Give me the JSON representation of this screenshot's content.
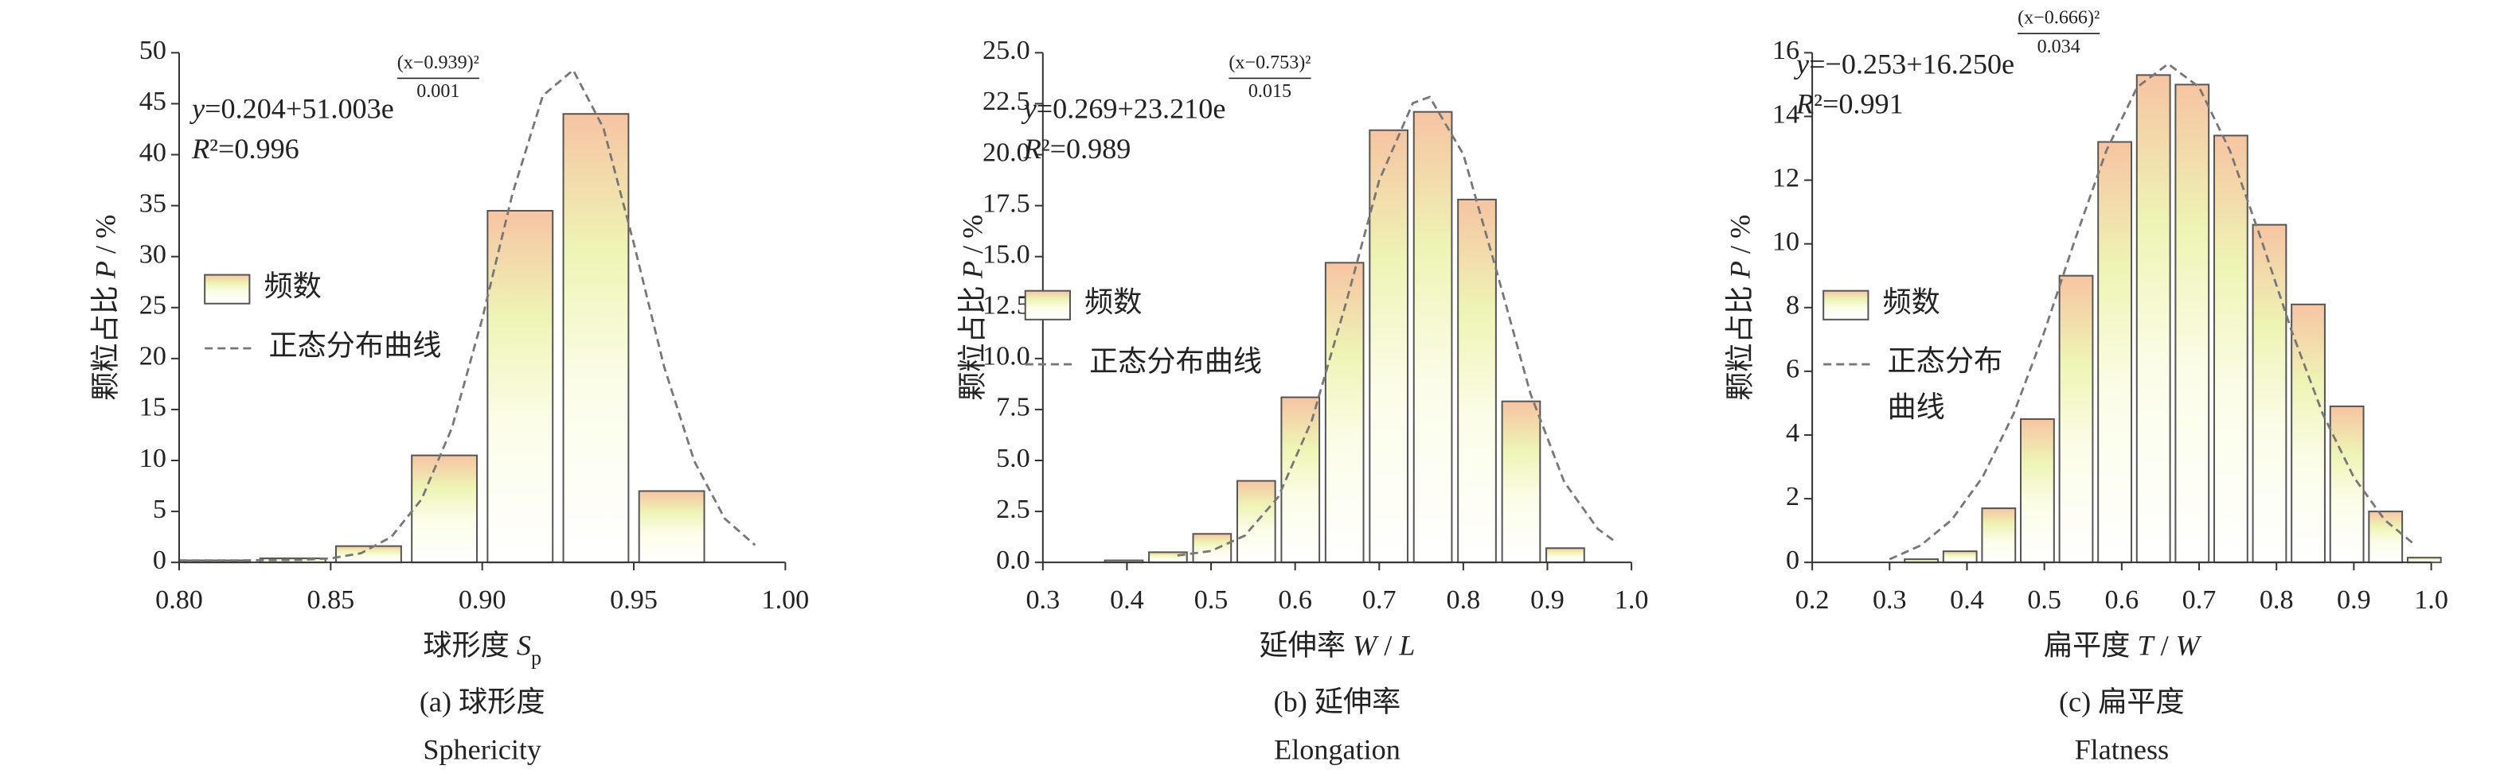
{
  "chart_data": [
    {
      "type": "histogram",
      "xlabel": [
        {
          "text": "球形度 "
        },
        {
          "text": "S",
          "style": "italic"
        },
        {
          "text": "p",
          "style": "sub"
        }
      ],
      "ylabel": [
        {
          "text": "颗粒占比 "
        },
        {
          "text": "P",
          "style": "italic"
        },
        {
          "text": " / %"
        }
      ],
      "caption": [
        "(a) 球形度",
        "Sphericity"
      ],
      "equation": [
        {
          "text": "y",
          "style": "italic"
        },
        {
          "text": "=0.204+51.003e"
        }
      ],
      "exponent": {
        "numerator": "(x−0.939)²",
        "denominator": "0.001"
      },
      "r2": [
        {
          "text": "R",
          "style": "italic"
        },
        {
          "text": "²=0.996"
        }
      ],
      "xlim": [
        0.8,
        1.0
      ],
      "xticks": [
        {
          "value": 0.8,
          "label": "0.80"
        },
        0.85,
        {
          "value": 0.9,
          "label": "0.90"
        },
        0.95,
        {
          "value": 1.0,
          "label": "1.00"
        }
      ],
      "ylim": [
        0,
        50
      ],
      "yticks": [
        0,
        5,
        10,
        15,
        20,
        25,
        30,
        35,
        40,
        45,
        50
      ],
      "series": [
        {
          "name": "频数",
          "type": "histogram",
          "bins": [
            0.8,
            0.825,
            0.85,
            0.875,
            0.9,
            0.925,
            0.95,
            0.975,
            1.0
          ],
          "values": [
            0.2,
            0.4,
            1.6,
            10.5,
            34.5,
            44,
            7,
            0
          ]
        },
        {
          "name": "正态分布曲线",
          "type": "line",
          "color": "#777777",
          "x": [
            0.8,
            0.82,
            0.84,
            0.85,
            0.86,
            0.87,
            0.88,
            0.89,
            0.9,
            0.91,
            0.92,
            0.93,
            0.94,
            0.95,
            0.96,
            0.97,
            0.98,
            0.99
          ],
          "values": [
            0.2,
            0.2,
            0.24,
            0.4,
            0.9,
            2.5,
            6.2,
            13.2,
            23.9,
            36.2,
            45.8,
            48.3,
            42.6,
            31.3,
            19.2,
            9.9,
            4.3,
            1.7
          ]
        }
      ]
    },
    {
      "type": "histogram",
      "xlabel": [
        {
          "text": "延伸率 "
        },
        {
          "text": "W",
          "style": "italic"
        },
        {
          "text": " / "
        },
        {
          "text": "L",
          "style": "italic"
        }
      ],
      "ylabel": [
        {
          "text": "颗粒占比 "
        },
        {
          "text": "P",
          "style": "italic"
        },
        {
          "text": " / %"
        }
      ],
      "caption": [
        "(b) 延伸率",
        "Elongation"
      ],
      "equation": [
        {
          "text": "y",
          "style": "italic"
        },
        {
          "text": "=0.269+23.210e"
        }
      ],
      "exponent": {
        "numerator": "(x−0.753)²",
        "denominator": "0.015"
      },
      "r2": [
        {
          "text": "R",
          "style": "italic"
        },
        {
          "text": "²=0.989"
        }
      ],
      "xlim": [
        0.3,
        1.0
      ],
      "xticks": [
        0.3,
        0.4,
        0.5,
        0.6,
        0.7,
        0.8,
        0.9,
        {
          "value": 1.0,
          "label": "1.0"
        }
      ],
      "ylim": [
        0,
        25
      ],
      "yticks": [
        {
          "value": 0,
          "label": "0.0"
        },
        2.5,
        {
          "value": 5,
          "label": "5.0"
        },
        7.5,
        {
          "value": 10,
          "label": "10.0"
        },
        12.5,
        {
          "value": 15,
          "label": "15.0"
        },
        17.5,
        {
          "value": 20,
          "label": "20.0"
        },
        22.5,
        {
          "value": 25,
          "label": "25.0"
        }
      ],
      "series": [
        {
          "name": "频数",
          "type": "histogram",
          "bins": [
            0.37,
            0.4225,
            0.475,
            0.5275,
            0.58,
            0.6325,
            0.685,
            0.7375,
            0.79,
            0.8425,
            0.895,
            0.9475
          ],
          "values": [
            0.1,
            0.5,
            1.4,
            4.0,
            8.1,
            14.7,
            21.2,
            22.1,
            17.8,
            7.9,
            0.7
          ]
        },
        {
          "name": "正态分布曲线",
          "type": "line",
          "color": "#777777",
          "x": [
            0.46,
            0.5,
            0.54,
            0.58,
            0.62,
            0.66,
            0.7,
            0.74,
            0.76,
            0.8,
            0.84,
            0.88,
            0.92,
            0.96,
            0.98
          ],
          "values": [
            0.34,
            0.56,
            1.31,
            3.21,
            6.98,
            12.65,
            18.74,
            22.53,
            22.83,
            20.02,
            14.23,
            8.26,
            3.95,
            1.64,
            1.04
          ]
        }
      ]
    },
    {
      "type": "histogram",
      "xlabel": [
        {
          "text": "扁平度 "
        },
        {
          "text": "T",
          "style": "italic"
        },
        {
          "text": " / "
        },
        {
          "text": "W",
          "style": "italic"
        }
      ],
      "ylabel": [
        {
          "text": "颗粒占比 "
        },
        {
          "text": "P",
          "style": "italic"
        },
        {
          "text": " / %"
        }
      ],
      "caption": [
        "(c) 扁平度",
        "Flatness"
      ],
      "equation": [
        {
          "text": "y",
          "style": "italic"
        },
        {
          "text": "=−0.253+16.250e"
        }
      ],
      "exponent": {
        "numerator": "(x−0.666)²",
        "denominator": "0.034"
      },
      "r2": [
        {
          "text": "R",
          "style": "italic"
        },
        {
          "text": "²=0.991"
        }
      ],
      "xlim": [
        0.2,
        1.0
      ],
      "xticks": [
        0.2,
        0.3,
        0.4,
        0.5,
        0.6,
        0.7,
        0.8,
        0.9,
        {
          "value": 1.0,
          "label": "1.0"
        }
      ],
      "ylim": [
        0,
        16
      ],
      "yticks": [
        0,
        2,
        4,
        6,
        8,
        10,
        12,
        14,
        16
      ],
      "series": [
        {
          "name": "频数",
          "type": "histogram",
          "bins": [
            0.316,
            0.366,
            0.416,
            0.466,
            0.516,
            0.566,
            0.616,
            0.666,
            0.716,
            0.766,
            0.816,
            0.866,
            0.916,
            0.966,
            1.016
          ],
          "values": [
            0.1,
            0.35,
            1.7,
            4.5,
            9.0,
            13.2,
            15.3,
            15.0,
            13.4,
            10.6,
            8.1,
            4.9,
            1.6,
            0.15
          ]
        },
        {
          "name": "正态分布\n曲线",
          "type": "line",
          "color": "#777777",
          "x": [
            0.3,
            0.34,
            0.38,
            0.42,
            0.46,
            0.5,
            0.54,
            0.58,
            0.62,
            0.66,
            0.7,
            0.74,
            0.78,
            0.82,
            0.86,
            0.9,
            0.94,
            0.98
          ],
          "values": [
            0.1,
            0.53,
            1.33,
            2.67,
            4.65,
            7.24,
            10.16,
            12.92,
            14.92,
            15.65,
            14.92,
            12.92,
            10.16,
            7.24,
            4.65,
            2.67,
            1.33,
            0.53
          ]
        }
      ]
    }
  ]
}
